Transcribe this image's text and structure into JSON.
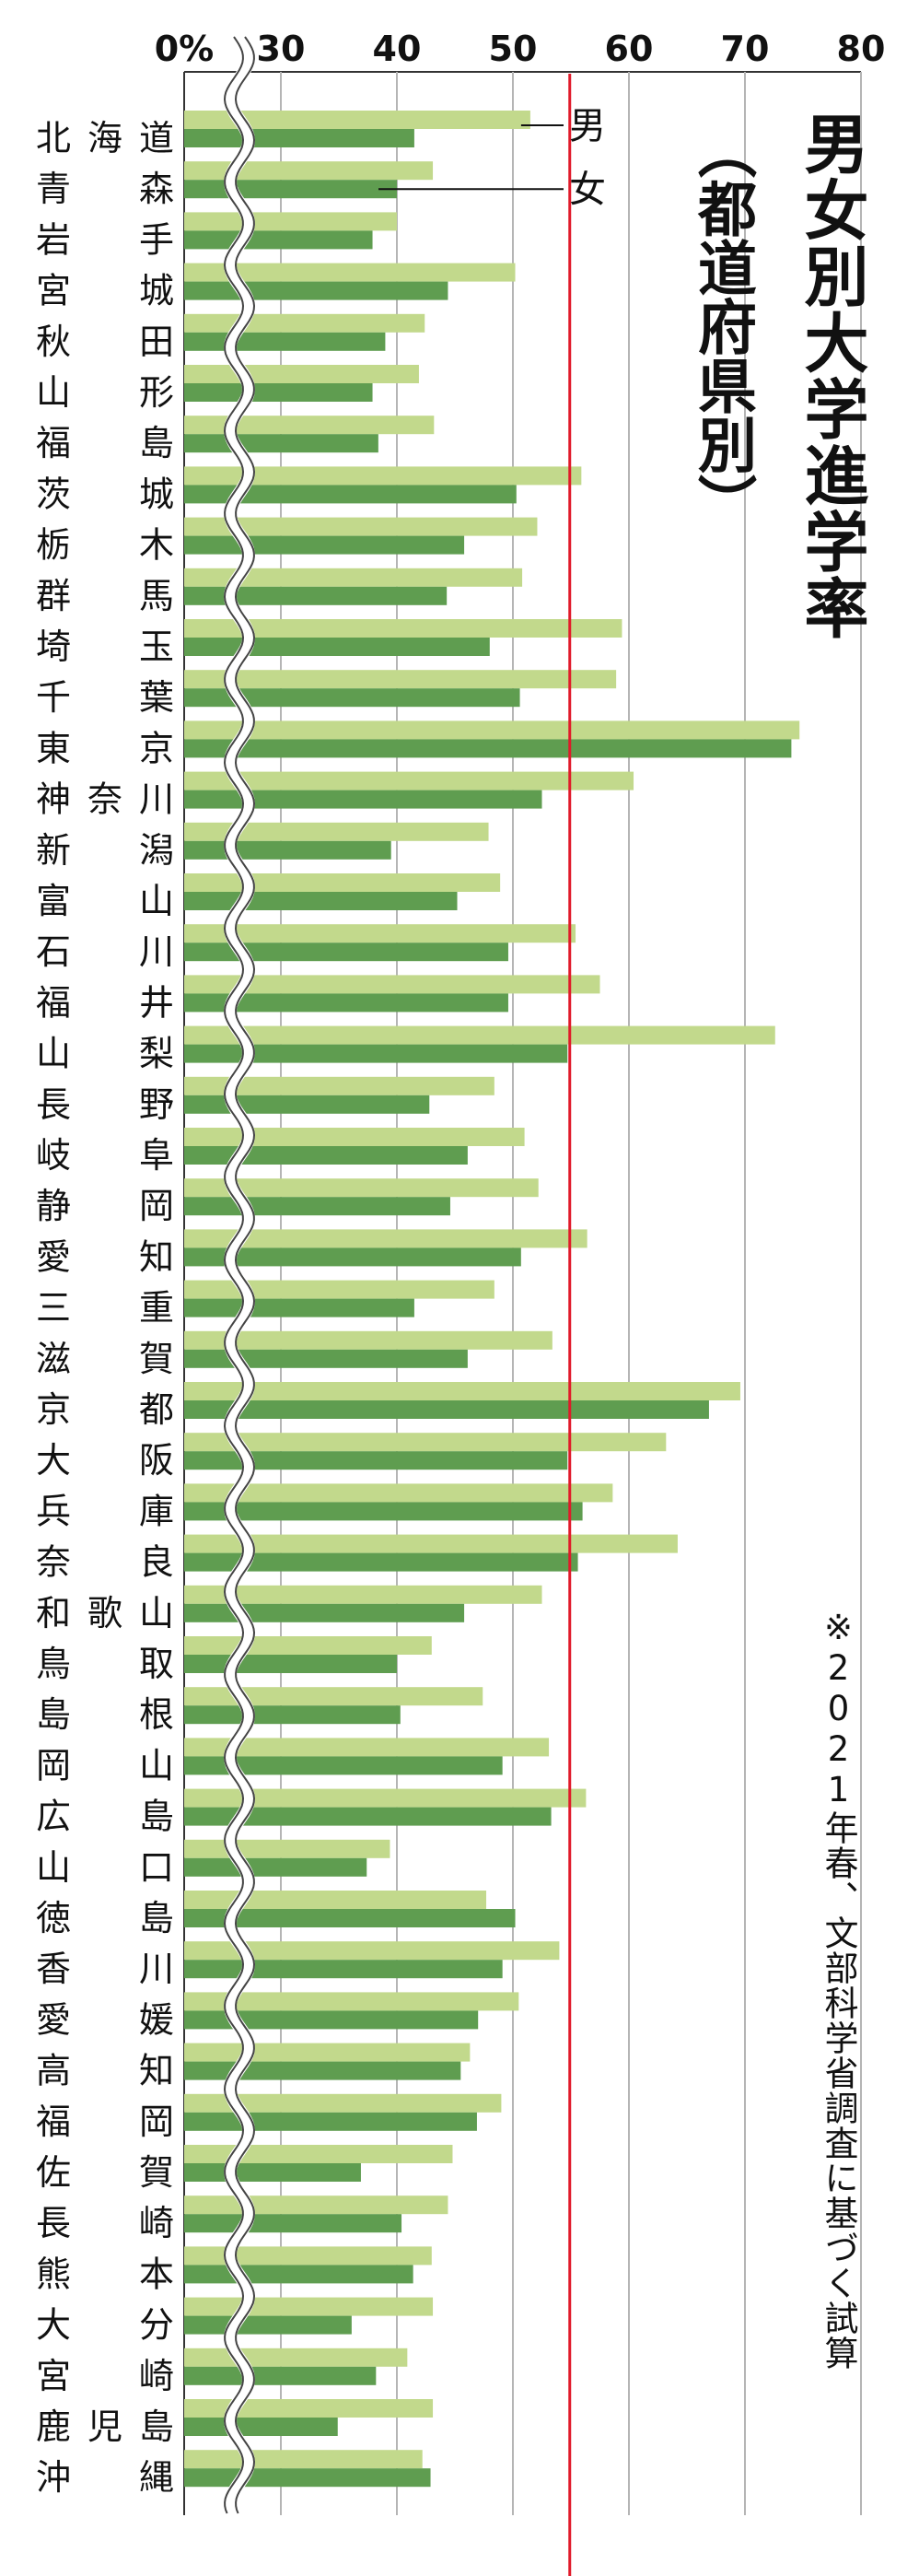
{
  "title": "男女別大学進学率",
  "subtitle": "（都道府県別）",
  "note": "※2021年春、文部科学省調査に基づく試算",
  "colors": {
    "male": "#c2d98c",
    "female": "#5f9d50",
    "reference": "#e01a2a",
    "grid": "#b5b5b5"
  },
  "chart_data": {
    "type": "bar",
    "orientation": "horizontal",
    "xlim": [
      0,
      80
    ],
    "axis_break": [
      0,
      25
    ],
    "x_ticks": [
      {
        "value": 0,
        "label": "0%"
      },
      {
        "value": 30,
        "label": "30"
      },
      {
        "value": 40,
        "label": "40"
      },
      {
        "value": 50,
        "label": "50"
      },
      {
        "value": 60,
        "label": "60"
      },
      {
        "value": 70,
        "label": "70"
      },
      {
        "value": 80,
        "label": "80"
      }
    ],
    "reference_line": 54.9,
    "categories": [
      "北海道",
      "青森",
      "岩手",
      "宮城",
      "秋田",
      "山形",
      "福島",
      "茨城",
      "栃木",
      "群馬",
      "埼玉",
      "千葉",
      "東京",
      "神奈川",
      "新潟",
      "富山",
      "石川",
      "福井",
      "山梨",
      "長野",
      "岐阜",
      "静岡",
      "愛知",
      "三重",
      "滋賀",
      "京都",
      "大阪",
      "兵庫",
      "奈良",
      "和歌山",
      "鳥取",
      "島根",
      "岡山",
      "広島",
      "山口",
      "徳島",
      "香川",
      "愛媛",
      "高知",
      "福岡",
      "佐賀",
      "長崎",
      "熊本",
      "大分",
      "宮崎",
      "鹿児島",
      "沖縄"
    ],
    "series": [
      {
        "name": "男",
        "values": [
          51.5,
          43.1,
          40.0,
          50.2,
          42.4,
          41.9,
          43.2,
          55.9,
          52.1,
          50.8,
          59.4,
          58.9,
          74.7,
          60.4,
          47.9,
          48.9,
          55.4,
          57.5,
          72.6,
          48.4,
          51.0,
          52.2,
          56.4,
          48.4,
          53.4,
          69.6,
          63.2,
          58.6,
          64.2,
          52.5,
          43.0,
          47.4,
          53.1,
          56.3,
          39.4,
          47.7,
          54.0,
          50.5,
          46.3,
          49.0,
          44.8,
          44.4,
          43.0,
          43.1,
          40.9,
          43.1,
          42.2
        ]
      },
      {
        "name": "女",
        "values": [
          41.5,
          40.0,
          37.9,
          44.4,
          39.0,
          37.9,
          38.4,
          50.3,
          45.8,
          44.3,
          48.0,
          50.6,
          74.0,
          52.5,
          39.5,
          45.2,
          49.6,
          49.6,
          54.7,
          42.8,
          46.1,
          44.6,
          50.7,
          41.5,
          46.1,
          66.9,
          54.7,
          56.0,
          55.6,
          45.8,
          40.0,
          40.3,
          49.1,
          53.3,
          37.4,
          50.2,
          49.1,
          47.0,
          45.5,
          46.9,
          36.9,
          40.4,
          41.4,
          36.1,
          38.2,
          34.9,
          42.9
        ]
      }
    ]
  }
}
